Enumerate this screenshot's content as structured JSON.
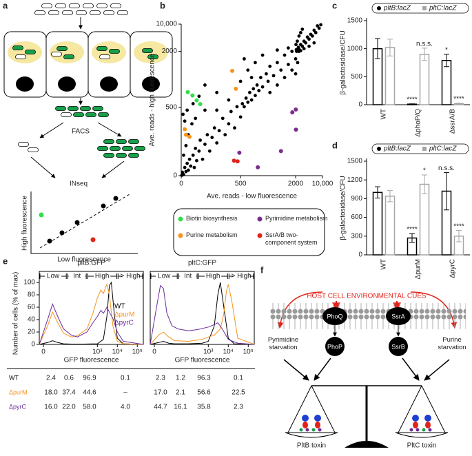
{
  "panel_labels": [
    "a",
    "b",
    "c",
    "d",
    "e",
    "f"
  ],
  "diagram_a": {
    "steps": [
      "FACS",
      "INseq"
    ],
    "x_label": "Low fluorescence",
    "y_label": "High fluorescence"
  },
  "chart_data": [
    {
      "type": "scatter",
      "x_label": "Ave. reads - low fluorescence",
      "y_label": "Ave. reads - high fluorescence",
      "xlim": [
        0,
        10000
      ],
      "ylim": [
        0,
        10000
      ],
      "xticks": [
        0,
        500,
        2000,
        {
          "value": 10000,
          "label": "10,000"
        }
      ],
      "yticks": [
        0,
        500,
        2000,
        {
          "value": 10000,
          "label": "10,000"
        }
      ],
      "series": [
        {
          "color": "#000000",
          "x": [
            5,
            10,
            20,
            30,
            40,
            50,
            60,
            70,
            80,
            100,
            110,
            120,
            130,
            150,
            160,
            180,
            200,
            220,
            240,
            260,
            280,
            300,
            320,
            350,
            370,
            400,
            420,
            450,
            470,
            500,
            20,
            40,
            60,
            90,
            30,
            15,
            50,
            120,
            200,
            300,
            550,
            600,
            650,
            700,
            750,
            800,
            850,
            900,
            950,
            1000,
            1050,
            1100,
            1200,
            1250,
            1300,
            1400,
            1500,
            1600,
            1700,
            1800,
            1900,
            2000,
            400,
            300,
            200,
            500,
            150,
            100,
            700,
            600,
            900,
            1100,
            800,
            1300,
            1500,
            1700,
            1900,
            2000,
            2200,
            2500,
            2800,
            3000,
            3500,
            4000,
            4500,
            5000,
            5500,
            6000,
            6500,
            7000,
            7500,
            8000,
            8500,
            9000,
            9500,
            1500,
            1800,
            2100,
            2500,
            3000,
            3500,
            4000,
            2300,
            2600,
            3000,
            3500,
            4500,
            6000,
            7500
          ],
          "values": [
            3,
            25,
            8,
            60,
            30,
            90,
            40,
            120,
            70,
            150,
            60,
            200,
            110,
            180,
            260,
            120,
            230,
            300,
            180,
            280,
            350,
            240,
            330,
            420,
            300,
            380,
            470,
            350,
            520,
            430,
            150,
            220,
            300,
            380,
            400,
            450,
            480,
            420,
            480,
            480,
            600,
            520,
            750,
            640,
            900,
            700,
            1000,
            820,
            1100,
            950,
            1300,
            1050,
            1400,
            1200,
            1600,
            1350,
            1700,
            1500,
            1900,
            1650,
            2000,
            1800,
            700,
            900,
            1100,
            1200,
            800,
            600,
            1500,
            1800,
            1700,
            1900,
            1300,
            900,
            1100,
            1300,
            1500,
            1400,
            2500,
            2200,
            3200,
            2700,
            4000,
            3500,
            5000,
            4500,
            6200,
            5600,
            7000,
            6500,
            8200,
            7500,
            9500,
            8800,
            9800,
            2400,
            3000,
            4000,
            5000,
            6500,
            7500,
            8500,
            2000,
            1700,
            2000,
            2200,
            2800,
            3500,
            4500
          ]
        },
        {
          "name": "Biotin biosynthesis",
          "color": "#2ee04a",
          "x": [
            55,
            95,
            130,
            160
          ],
          "values": [
            910,
            820,
            690,
            590
          ]
        },
        {
          "name": "Purine metabolism",
          "color": "#f7941d",
          "x": [
            430,
            460,
            30,
            40,
            70
          ],
          "values": [
            1480,
            1000,
            340,
            300,
            285
          ]
        },
        {
          "name": "Pyrimidine metabolism",
          "color": "#7b2d8e",
          "x": [
            1910,
            2050,
            2100,
            1600,
            490,
            970
          ],
          "values": [
            464,
            485,
            337,
            180,
            168,
            61
          ]
        },
        {
          "name": "SsrA/B two-component system",
          "color": "#e2231a",
          "x": [
            445,
            475
          ],
          "values": [
            110,
            105
          ]
        }
      ]
    },
    {
      "type": "bar",
      "y_label": "β-galactosidase/CFU",
      "categories": [
        "WT",
        "ΔphoP/Q",
        "ΔssrA/B"
      ],
      "ylim": [
        0,
        1500
      ],
      "yticks": [
        0,
        500,
        1000,
        1500
      ],
      "series": [
        {
          "name": "pltB:lacZ",
          "color": "#000000",
          "values": [
            1000,
            10,
            790
          ],
          "errors": [
            180,
            5,
            110
          ],
          "annotations": [
            null,
            "****",
            "*"
          ]
        },
        {
          "name": "pltC:lacZ",
          "color": "#a6a6a6",
          "values": [
            1020,
            900,
            20
          ],
          "errors": [
            150,
            110,
            8
          ],
          "annotations": [
            null,
            "n.s.s.",
            "****"
          ]
        }
      ]
    },
    {
      "type": "bar",
      "y_label": "β-galactosidase/CFU",
      "categories": [
        "WT",
        "ΔpurM",
        "ΔpyrC"
      ],
      "ylim": [
        0,
        1500
      ],
      "yticks": [
        0,
        300,
        600,
        900,
        1200,
        1500
      ],
      "series": [
        {
          "name": "pltB:lacZ",
          "color": "#000000",
          "values": [
            1000,
            270,
            1020
          ],
          "errors": [
            90,
            70,
            300
          ],
          "annotations": [
            null,
            "****",
            "n.s.s."
          ]
        },
        {
          "name": "pltC:lacZ",
          "color": "#a6a6a6",
          "values": [
            940,
            1130,
            300
          ],
          "errors": [
            90,
            150,
            90
          ],
          "annotations": [
            null,
            "*",
            "****"
          ]
        }
      ]
    },
    {
      "type": "line",
      "title": "pltB:GFP",
      "x_label": "GFP fluorescence",
      "y_label": "Number of cells (% of max)",
      "xlim": [
        -2,
        200000
      ],
      "ylim": [
        0,
        100
      ],
      "xticks": [
        0,
        {
          "value": 1000,
          "label": "10³"
        },
        {
          "value": 10000,
          "label": "10⁴"
        },
        {
          "value": 100000,
          "label": "10⁵"
        }
      ],
      "yticks": [
        0,
        20,
        40,
        60,
        80,
        100
      ],
      "gates": [
        {
          "label": "Low",
          "range": [
            -2,
            30
          ]
        },
        {
          "label": "Int",
          "range": [
            30,
            300
          ]
        },
        {
          "label": "High",
          "range": [
            300,
            10000
          ]
        },
        {
          "label": "> High",
          "range": [
            10000,
            200000
          ]
        }
      ],
      "legend": "right",
      "series": [
        {
          "name": "WT",
          "color": "#000000",
          "x": [
            -2,
            2,
            5,
            10,
            20,
            50,
            200,
            1000,
            2000,
            3000,
            4000,
            5000,
            7000,
            10000,
            20000,
            200000
          ],
          "values": [
            0,
            3,
            6,
            3,
            1,
            0.5,
            0.5,
            1,
            8,
            45,
            95,
            100,
            50,
            10,
            1,
            0
          ]
        },
        {
          "name": "ΔpurM",
          "color": "#f7941d",
          "x": [
            -2,
            2,
            5,
            10,
            20,
            50,
            100,
            300,
            600,
            1000,
            1500,
            2000,
            3000,
            4000,
            6000,
            10000,
            20000,
            200000
          ],
          "values": [
            0,
            30,
            52,
            35,
            18,
            12,
            14,
            25,
            50,
            75,
            88,
            82,
            97,
            80,
            30,
            5,
            1,
            0
          ]
        },
        {
          "name": "ΔpyrC",
          "color": "#6a2c9a",
          "x": [
            -2,
            2,
            5,
            10,
            20,
            50,
            100,
            300,
            600,
            1000,
            1500,
            2000,
            3000,
            4000,
            6000,
            10000,
            20000,
            200000
          ],
          "values": [
            0,
            40,
            65,
            45,
            25,
            15,
            12,
            20,
            35,
            45,
            55,
            50,
            60,
            52,
            42,
            20,
            5,
            0
          ]
        }
      ]
    },
    {
      "type": "line",
      "title": "pltC:GFP",
      "x_label": "GFP fluorescence",
      "xlim": [
        -2,
        200000
      ],
      "ylim": [
        0,
        100
      ],
      "xticks": [
        0,
        {
          "value": 1000,
          "label": "10³"
        },
        {
          "value": 10000,
          "label": "10⁴"
        },
        {
          "value": 100000,
          "label": "10⁵"
        }
      ],
      "gates": [
        {
          "label": "Low",
          "range": [
            -2,
            30
          ]
        },
        {
          "label": "Int",
          "range": [
            30,
            300
          ]
        },
        {
          "label": "High",
          "range": [
            300,
            10000
          ]
        },
        {
          "label": "> High",
          "range": [
            10000,
            200000
          ]
        }
      ],
      "series": [
        {
          "color": "#000000",
          "x": [
            -2,
            2,
            5,
            10,
            20,
            100,
            500,
            1000,
            2000,
            3000,
            4000,
            6000,
            10000,
            20000,
            200000
          ],
          "values": [
            0,
            3,
            5,
            2,
            1,
            1,
            2,
            5,
            30,
            80,
            100,
            60,
            10,
            1,
            0
          ]
        },
        {
          "color": "#f7941d",
          "x": [
            -2,
            2,
            5,
            10,
            20,
            100,
            500,
            1000,
            2000,
            4000,
            6000,
            8000,
            10000,
            15000,
            30000,
            200000
          ],
          "values": [
            0,
            15,
            20,
            12,
            6,
            5,
            8,
            12,
            15,
            25,
            50,
            85,
            97,
            70,
            10,
            0
          ]
        },
        {
          "color": "#6a2c9a",
          "x": [
            -2,
            1,
            3,
            5,
            8,
            15,
            30,
            100,
            300,
            1000,
            2000,
            3000,
            5000,
            10000,
            30000,
            200000
          ],
          "values": [
            0,
            60,
            95,
            90,
            50,
            30,
            25,
            22,
            24,
            28,
            32,
            35,
            25,
            8,
            2,
            0
          ]
        }
      ]
    }
  ],
  "table_e": {
    "rows": [
      [
        "WT",
        "2.4",
        "0.6",
        "96.9",
        "0.1",
        "2.3",
        "1.2",
        "96.3",
        "0.1"
      ],
      [
        "ΔpurM",
        "18.0",
        "37.4",
        "44.6",
        "–",
        "17.0",
        "2.1",
        "56.6",
        "22.5"
      ],
      [
        "ΔpyrC",
        "16.0",
        "22.0",
        "58.0",
        "4.0",
        "44.7",
        "16.1",
        "35.8",
        "2.3"
      ]
    ]
  },
  "diagram_f": {
    "cue": "HOST CELL ENVIRONMENTAL CUES",
    "nodes": [
      "PhoQ",
      "PhoP",
      "SsrA",
      "SsrB"
    ],
    "left_signal": "Pyrimidine starvation",
    "right_signal": "Purine starvation",
    "left_pan": "PltB toxin",
    "right_pan": "PltC toxin"
  }
}
